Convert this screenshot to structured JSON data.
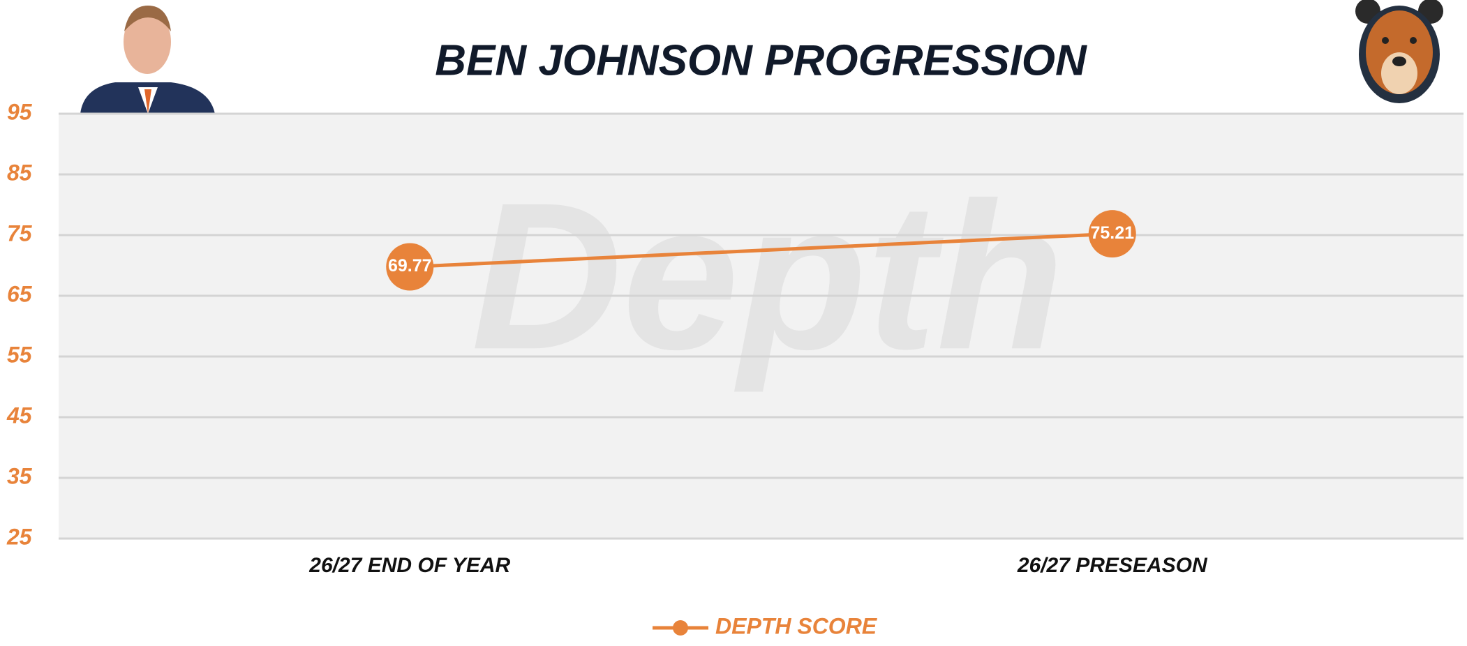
{
  "chart_data": {
    "type": "line",
    "title": "BEN JOHNSON PROGRESSION",
    "watermark": "Depth",
    "categories": [
      "26/27 END OF YEAR",
      "26/27 PRESEASON"
    ],
    "series": [
      {
        "name": "DEPTH SCORE",
        "color": "#e8833a",
        "values": [
          69.77,
          75.21
        ]
      }
    ],
    "ylim": [
      25,
      95
    ],
    "yticks": [
      25,
      35,
      45,
      55,
      65,
      75,
      85,
      95
    ],
    "grid": true,
    "legend": "bottom"
  }
}
